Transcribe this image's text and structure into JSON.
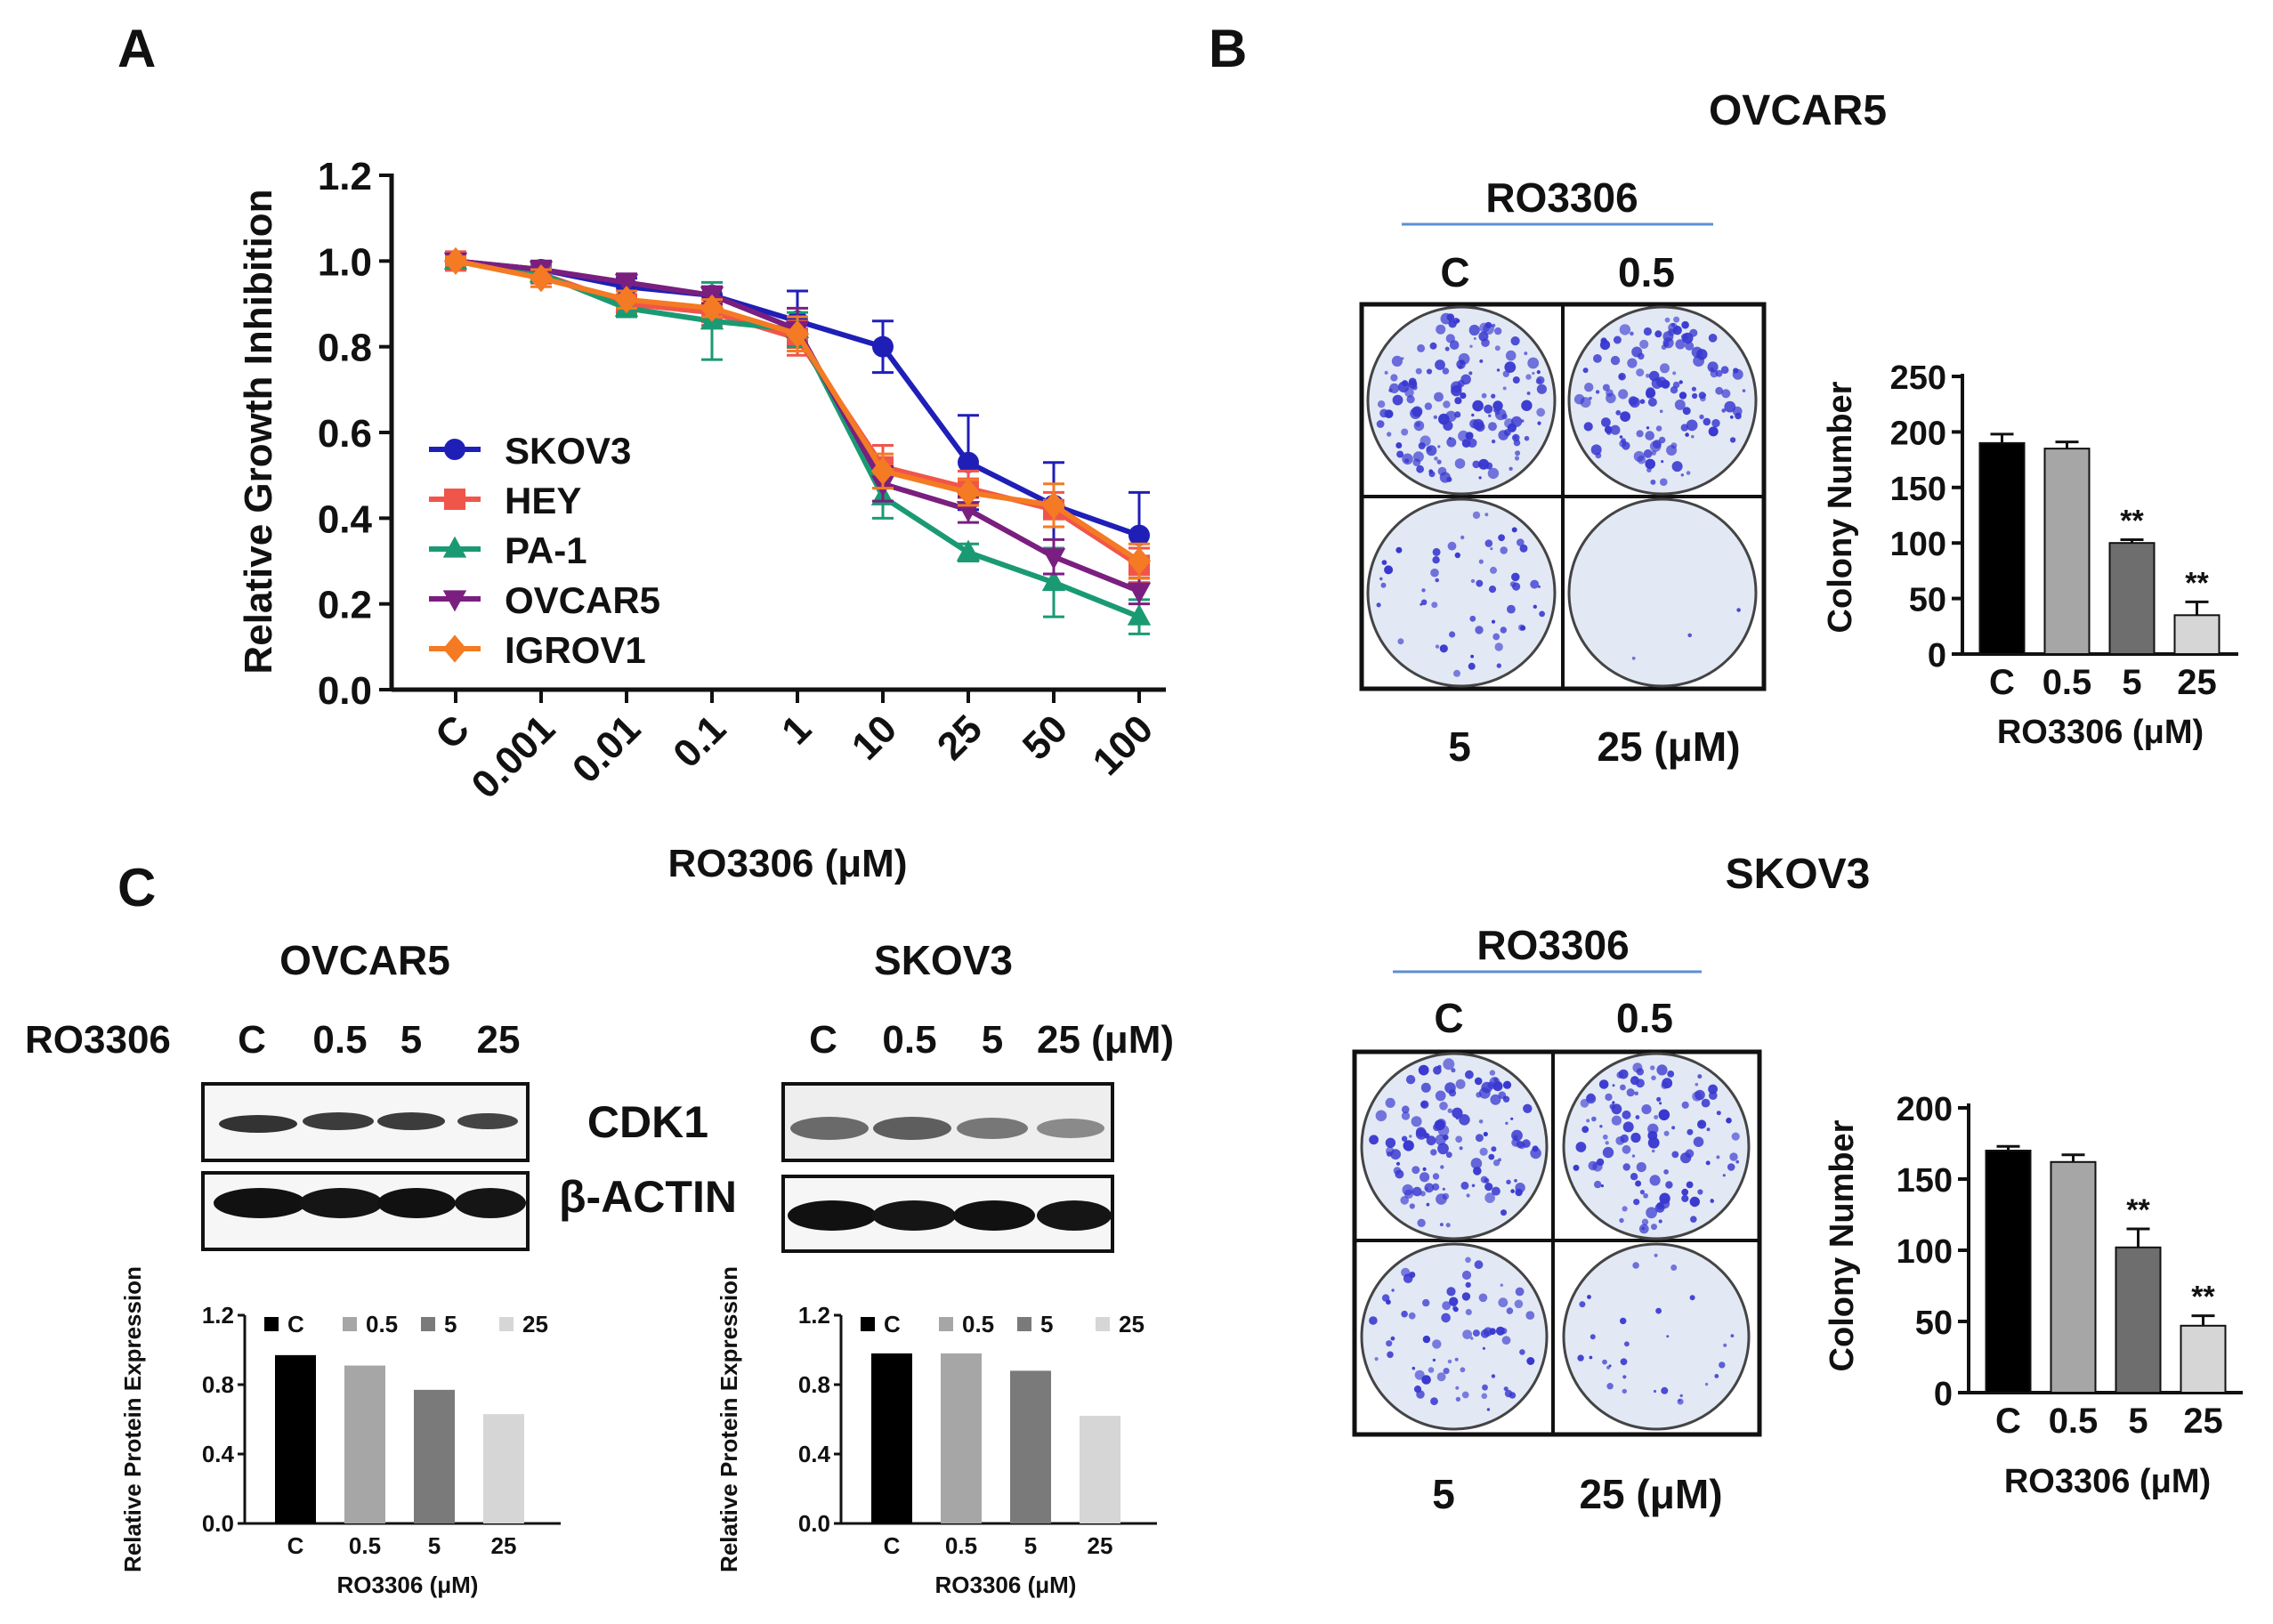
{
  "panels": {
    "a": "A",
    "b": "B",
    "c": "C"
  },
  "colors": {
    "skov3": "#1f1fb8",
    "hey": "#f0554a",
    "pa1": "#1a9a73",
    "ovcar5": "#7a1f7f",
    "igrov1": "#f47a23",
    "dish_bg": "#e2e9f4",
    "colony": "#3838d0",
    "rule": "#5c8fd4"
  },
  "chart_data": [
    {
      "id": "A",
      "type": "line",
      "title": "",
      "xlabel": "RO3306  (μM)",
      "ylabel": "Relative Growth Inhibition",
      "categories": [
        "C",
        "0.001",
        "0.01",
        "0.1",
        "1",
        "10",
        "25",
        "50",
        "100"
      ],
      "ylim": [
        0,
        1.2
      ],
      "yticks": [
        "0.0",
        "0.2",
        "0.4",
        "0.6",
        "0.8",
        "1.0",
        "1.2"
      ],
      "legend_position": "middle-left",
      "series": [
        {
          "name": "SKOV3",
          "color": "#1f1fb8",
          "marker": "circle",
          "values": [
            1.0,
            0.98,
            0.94,
            0.92,
            0.86,
            0.8,
            0.53,
            0.43,
            0.36
          ],
          "errors": [
            0.01,
            0.02,
            0.02,
            0.02,
            0.07,
            0.06,
            0.11,
            0.1,
            0.1
          ]
        },
        {
          "name": "HEY",
          "color": "#f0554a",
          "marker": "square",
          "values": [
            1.0,
            0.97,
            0.9,
            0.88,
            0.82,
            0.52,
            0.47,
            0.42,
            0.29
          ],
          "errors": [
            0.01,
            0.02,
            0.02,
            0.03,
            0.04,
            0.05,
            0.04,
            0.04,
            0.04
          ]
        },
        {
          "name": "PA-1",
          "color": "#1a9a73",
          "marker": "triangle-up",
          "values": [
            1.0,
            0.97,
            0.89,
            0.86,
            0.84,
            0.45,
            0.32,
            0.25,
            0.17
          ],
          "errors": [
            0.01,
            0.02,
            0.02,
            0.09,
            0.04,
            0.05,
            0.02,
            0.08,
            0.04
          ]
        },
        {
          "name": "OVCAR5",
          "color": "#7a1f7f",
          "marker": "triangle-down",
          "values": [
            1.0,
            0.98,
            0.95,
            0.92,
            0.84,
            0.48,
            0.42,
            0.31,
            0.23
          ],
          "errors": [
            0.01,
            0.02,
            0.02,
            0.02,
            0.05,
            0.04,
            0.03,
            0.04,
            0.03
          ]
        },
        {
          "name": "IGROV1",
          "color": "#f47a23",
          "marker": "diamond",
          "values": [
            1.0,
            0.96,
            0.91,
            0.89,
            0.83,
            0.51,
            0.46,
            0.43,
            0.3
          ],
          "errors": [
            0.01,
            0.02,
            0.02,
            0.02,
            0.04,
            0.04,
            0.03,
            0.05,
            0.04
          ]
        }
      ]
    },
    {
      "id": "B-OVCAR5",
      "type": "bar",
      "title": "OVCAR5",
      "xlabel": "RO3306  (μM)",
      "ylabel": "Colony Number",
      "categories": [
        "C",
        "0.5",
        "5",
        "25"
      ],
      "values": [
        190,
        185,
        100,
        35
      ],
      "errors": [
        8,
        6,
        3,
        12
      ],
      "significance": [
        "",
        "",
        "**",
        "**"
      ],
      "bar_colors": [
        "#000000",
        "#a6a6a6",
        "#6e6e6e",
        "#d6d6d6"
      ],
      "ylim": [
        0,
        250
      ],
      "yticks": [
        "0",
        "50",
        "100",
        "150",
        "200",
        "250"
      ]
    },
    {
      "id": "B-SKOV3",
      "type": "bar",
      "title": "SKOV3",
      "xlabel": "RO3306  (μM)",
      "ylabel": "Colony Number",
      "categories": [
        "C",
        "0.5",
        "5",
        "25"
      ],
      "values": [
        170,
        162,
        102,
        47
      ],
      "errors": [
        3,
        5,
        13,
        7
      ],
      "significance": [
        "",
        "",
        "**",
        "**"
      ],
      "bar_colors": [
        "#000000",
        "#a6a6a6",
        "#6e6e6e",
        "#d6d6d6"
      ],
      "ylim": [
        0,
        200
      ],
      "yticks": [
        "0",
        "50",
        "100",
        "150",
        "200"
      ]
    },
    {
      "id": "C-OVCAR5",
      "type": "bar",
      "title": "",
      "xlabel": "RO3306  (μM)",
      "ylabel": "Relative Protein Expression",
      "categories": [
        "C",
        "0.5",
        "5",
        "25"
      ],
      "values": [
        0.97,
        0.91,
        0.77,
        0.63
      ],
      "bar_colors": [
        "#000000",
        "#a6a6a6",
        "#7a7a7a",
        "#d6d6d6"
      ],
      "legend": [
        "C",
        "0.5",
        "5",
        "25"
      ],
      "legend_position": "top",
      "ylim": [
        0,
        1.2
      ],
      "yticks": [
        "0.0",
        "0.4",
        "0.8",
        "1.2"
      ]
    },
    {
      "id": "C-SKOV3",
      "type": "bar",
      "title": "",
      "xlabel": "RO3306  (μM)",
      "ylabel": "Relative Protein Expression",
      "categories": [
        "C",
        "0.5",
        "5",
        "25"
      ],
      "values": [
        0.98,
        0.98,
        0.88,
        0.62
      ],
      "bar_colors": [
        "#000000",
        "#a6a6a6",
        "#7a7a7a",
        "#d6d6d6"
      ],
      "legend": [
        "C",
        "0.5",
        "5",
        "25"
      ],
      "legend_position": "top",
      "ylim": [
        0,
        1.2
      ],
      "yticks": [
        "0.0",
        "0.4",
        "0.8",
        "1.2"
      ]
    }
  ],
  "colony_assays": [
    {
      "cell_line": "OVCAR5",
      "treatment": "RO3306",
      "top_labels": [
        "C",
        "0.5"
      ],
      "bottom_labels": [
        "5",
        "25 (μM)"
      ]
    },
    {
      "cell_line": "SKOV3",
      "treatment": "RO3306",
      "top_labels": [
        "C",
        "0.5"
      ],
      "bottom_labels": [
        "5",
        "25 (μM)"
      ]
    }
  ],
  "western": {
    "treatment": "RO3306",
    "blots": [
      {
        "cell_line": "OVCAR5",
        "lanes": [
          "C",
          "0.5",
          "5",
          "25"
        ]
      },
      {
        "cell_line": "SKOV3",
        "lanes": [
          "C",
          "0.5",
          "5",
          "25 (μM)"
        ]
      }
    ],
    "proteins": [
      "CDK1",
      "β-ACTIN"
    ]
  }
}
